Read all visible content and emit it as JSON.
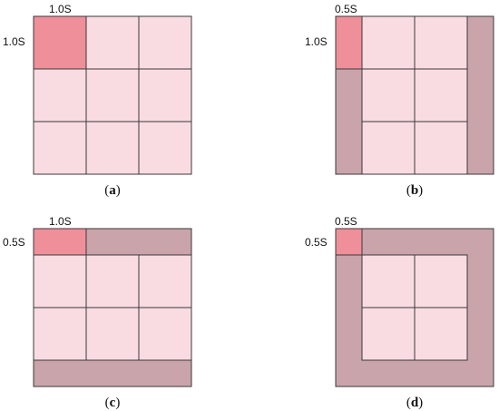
{
  "colors": {
    "cell_fill": "#f9dce1",
    "highlight_fill": "#ef8f9a",
    "padding_fill": "#c9a4aa",
    "line": "#3a3a3a"
  },
  "panels": [
    {
      "id": "a",
      "caption": {
        "open": "(",
        "letter": "a",
        "close": ")"
      },
      "top_label": "1.0S",
      "left_label": "1.0S"
    },
    {
      "id": "b",
      "caption": {
        "open": "(",
        "letter": "b",
        "close": ")"
      },
      "top_label": "0.5S",
      "left_label": "1.0S"
    },
    {
      "id": "c",
      "caption": {
        "open": "(",
        "letter": "c",
        "close": ")"
      },
      "top_label": "1.0S",
      "left_label": "0.5S"
    },
    {
      "id": "d",
      "caption": {
        "open": "(",
        "letter": "d",
        "close": ")"
      },
      "top_label": "0.5S",
      "left_label": "0.5S"
    }
  ]
}
